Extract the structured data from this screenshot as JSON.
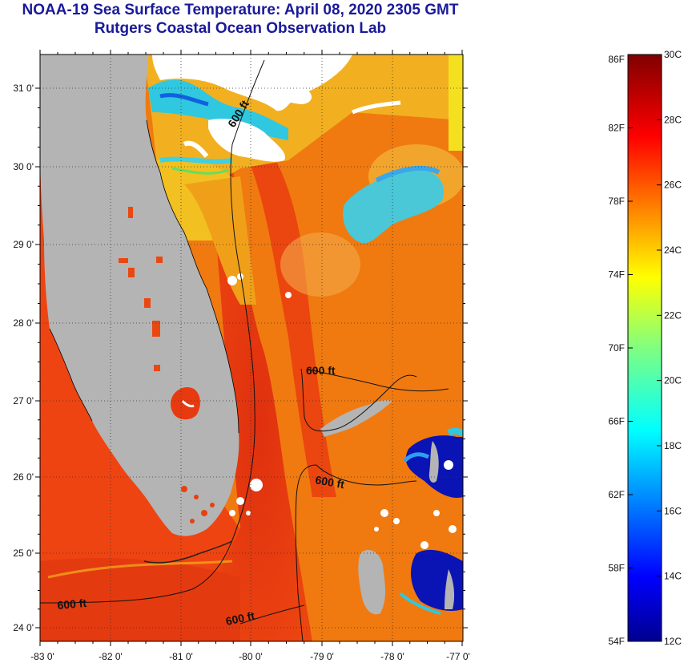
{
  "header": {
    "title": "NOAA-19 Sea Surface Temperature:  April 08, 2020 2305 GMT",
    "subtitle": "Rutgers Coastal Ocean Observation Lab"
  },
  "map": {
    "lat_labels": [
      "31 0'",
      "30 0'",
      "29 0'",
      "28 0'",
      "27 0'",
      "26 0'",
      "25 0'",
      "24 0'"
    ],
    "lon_labels": [
      "-83 0'",
      "-82 0'",
      "-81 0'",
      "-80 0'",
      "-79 0'",
      "-78 0'",
      "-77 0'"
    ],
    "depth_labels": [
      "600 ft",
      "600 ft",
      "600 ft",
      "600 ft",
      "600 ft"
    ],
    "colors": {
      "land": "#b4b4b4",
      "cloud": "#ffffff",
      "gulf_stream": "#e5340f",
      "warm_water": "#f07a10",
      "cool_water": "#3cc6d8",
      "cold_water": "#0a14b4",
      "title": "#1a1a9a"
    }
  },
  "colorbar": {
    "fahrenheit_labels": [
      "86F",
      "82F",
      "78F",
      "74F",
      "70F",
      "66F",
      "62F",
      "58F",
      "54F"
    ],
    "celsius_labels": [
      "30C",
      "28C",
      "26C",
      "24C",
      "22C",
      "20C",
      "18C",
      "16C",
      "14C",
      "12C"
    ]
  }
}
